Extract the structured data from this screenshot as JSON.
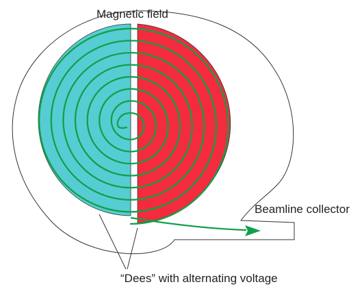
{
  "labels": {
    "magnetic_field": "Magnetic field",
    "beamline_collector": "Beamline collector",
    "dees": "“Dees” with alternating voltage"
  },
  "colors": {
    "left_dee": "#56CDD3",
    "right_dee": "#F42A3E",
    "spiral": "#11A04A",
    "outline": "#333333"
  }
}
